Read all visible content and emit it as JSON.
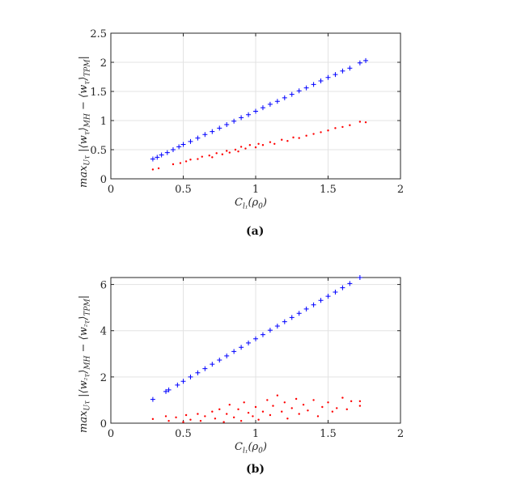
{
  "chart_data": [
    {
      "panel": "(a)",
      "type": "scatter",
      "xlim": [
        0,
        2
      ],
      "ylim": [
        0,
        2.5
      ],
      "xticks": [
        "0",
        "0.5",
        "1",
        "1.5",
        "2"
      ],
      "yticks": [
        "0",
        "0.5",
        "1",
        "1.5",
        "2",
        "2.5"
      ],
      "grid": true,
      "xlabel": [
        {
          "t": "C"
        },
        {
          "t": "l₁",
          "sub": true
        },
        {
          "t": "(ρ"
        },
        {
          "t": "0",
          "sub": true
        },
        {
          "t": ")"
        }
      ],
      "ylabel": [
        {
          "t": "max"
        },
        {
          "t": "Uτ",
          "sub": true
        },
        {
          "t": " |⟨w"
        },
        {
          "t": "τ",
          "sub": true
        },
        {
          "t": "⟩"
        },
        {
          "t": "MH",
          "sub": true
        },
        {
          "t": " − ⟨w"
        },
        {
          "t": "τ",
          "sub": true
        },
        {
          "t": "⟩"
        },
        {
          "t": "TPM",
          "sub": true
        },
        {
          "t": "|"
        }
      ],
      "series": [
        {
          "marker": "plus",
          "color": "#0000ff",
          "x": [
            0.29,
            0.32,
            0.35,
            0.39,
            0.43,
            0.47,
            0.5,
            0.55,
            0.6,
            0.65,
            0.7,
            0.75,
            0.8,
            0.85,
            0.9,
            0.95,
            1.0,
            1.05,
            1.1,
            1.15,
            1.2,
            1.25,
            1.3,
            1.35,
            1.4,
            1.45,
            1.5,
            1.55,
            1.6,
            1.65,
            1.72,
            1.76
          ],
          "y": [
            0.34,
            0.37,
            0.41,
            0.45,
            0.5,
            0.55,
            0.59,
            0.64,
            0.7,
            0.76,
            0.81,
            0.87,
            0.93,
            0.99,
            1.05,
            1.1,
            1.16,
            1.22,
            1.28,
            1.33,
            1.39,
            1.45,
            1.51,
            1.56,
            1.62,
            1.68,
            1.74,
            1.79,
            1.85,
            1.9,
            1.99,
            2.03
          ]
        },
        {
          "marker": "dot",
          "color": "#ff0000",
          "x": [
            0.29,
            0.33,
            0.43,
            0.48,
            0.52,
            0.55,
            0.6,
            0.63,
            0.68,
            0.7,
            0.73,
            0.77,
            0.8,
            0.82,
            0.86,
            0.88,
            0.9,
            0.93,
            0.96,
            1.0,
            1.02,
            1.05,
            1.1,
            1.13,
            1.18,
            1.22,
            1.26,
            1.3,
            1.35,
            1.4,
            1.45,
            1.5,
            1.55,
            1.6,
            1.65,
            1.72,
            1.76
          ],
          "y": [
            0.16,
            0.18,
            0.25,
            0.27,
            0.3,
            0.33,
            0.34,
            0.38,
            0.4,
            0.37,
            0.44,
            0.42,
            0.48,
            0.45,
            0.5,
            0.47,
            0.55,
            0.52,
            0.58,
            0.54,
            0.6,
            0.58,
            0.63,
            0.6,
            0.67,
            0.65,
            0.71,
            0.7,
            0.74,
            0.77,
            0.8,
            0.83,
            0.87,
            0.89,
            0.92,
            0.98,
            0.97
          ]
        }
      ]
    },
    {
      "panel": "(b)",
      "type": "scatter",
      "xlim": [
        0,
        2
      ],
      "ylim": [
        0,
        6.3
      ],
      "xticks": [
        "0",
        "0.5",
        "1",
        "1.5",
        "2"
      ],
      "yticks": [
        "0",
        "2",
        "4",
        "6"
      ],
      "grid": true,
      "xlabel": [
        {
          "t": "C"
        },
        {
          "t": "l₁",
          "sub": true
        },
        {
          "t": "(ρ"
        },
        {
          "t": "0",
          "sub": true
        },
        {
          "t": ")"
        }
      ],
      "ylabel": [
        {
          "t": "max"
        },
        {
          "t": "Uτ",
          "sub": true
        },
        {
          "t": " |⟨w"
        },
        {
          "t": "²τ",
          "sub": true
        },
        {
          "t": "⟩"
        },
        {
          "t": "MH",
          "sub": true
        },
        {
          "t": " − ⟨w"
        },
        {
          "t": "²τ",
          "sub": true
        },
        {
          "t": "⟩"
        },
        {
          "t": "TPM",
          "sub": true
        },
        {
          "t": "|"
        }
      ],
      "series": [
        {
          "marker": "plus",
          "color": "#0000ff",
          "x": [
            0.29,
            0.38,
            0.4,
            0.46,
            0.5,
            0.55,
            0.6,
            0.65,
            0.7,
            0.75,
            0.8,
            0.85,
            0.9,
            0.95,
            1.0,
            1.05,
            1.1,
            1.15,
            1.2,
            1.25,
            1.3,
            1.35,
            1.4,
            1.45,
            1.5,
            1.55,
            1.6,
            1.65,
            1.72
          ],
          "y": [
            1.03,
            1.37,
            1.44,
            1.65,
            1.81,
            2.0,
            2.18,
            2.36,
            2.55,
            2.73,
            2.91,
            3.1,
            3.28,
            3.47,
            3.65,
            3.83,
            4.02,
            4.2,
            4.39,
            4.57,
            4.75,
            4.94,
            5.12,
            5.31,
            5.49,
            5.67,
            5.86,
            6.04,
            6.3
          ]
        },
        {
          "marker": "dot",
          "color": "#ff0000",
          "x": [
            0.29,
            0.38,
            0.4,
            0.45,
            0.5,
            0.52,
            0.55,
            0.6,
            0.62,
            0.65,
            0.7,
            0.72,
            0.75,
            0.78,
            0.8,
            0.82,
            0.85,
            0.88,
            0.9,
            0.92,
            0.95,
            0.98,
            1.0,
            1.02,
            1.05,
            1.08,
            1.1,
            1.12,
            1.15,
            1.18,
            1.2,
            1.22,
            1.25,
            1.28,
            1.3,
            1.33,
            1.36,
            1.4,
            1.43,
            1.46,
            1.5,
            1.53,
            1.56,
            1.6,
            1.63,
            1.66,
            1.72,
            1.72
          ],
          "y": [
            0.18,
            0.3,
            0.1,
            0.25,
            0.05,
            0.35,
            0.15,
            0.4,
            0.1,
            0.3,
            0.5,
            0.2,
            0.6,
            0.05,
            0.4,
            0.8,
            0.25,
            0.6,
            0.1,
            0.9,
            0.45,
            0.3,
            0.7,
            0.15,
            0.5,
            1.0,
            0.35,
            0.75,
            1.2,
            0.5,
            0.9,
            0.2,
            0.65,
            1.05,
            0.4,
            0.8,
            0.55,
            1.0,
            0.3,
            0.7,
            0.9,
            0.5,
            0.65,
            1.1,
            0.6,
            0.95,
            0.95,
            0.75
          ]
        }
      ]
    }
  ]
}
